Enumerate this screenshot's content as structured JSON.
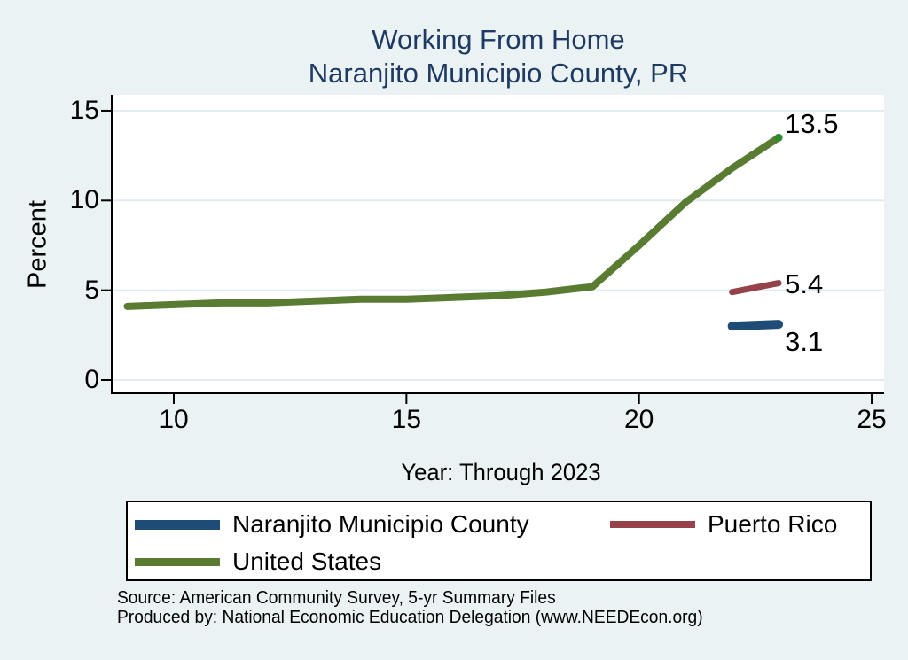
{
  "page": {
    "background_color": "#EAF2F3"
  },
  "chart_data": {
    "type": "line",
    "title_line1": "Working From Home",
    "title_line2": "Naranjito Municipio County, PR",
    "title_color": "#1E3A63",
    "xlabel": "Year: Through 2023",
    "ylabel": "Percent",
    "x_ticks": [
      10,
      15,
      20,
      25
    ],
    "x_tick_labels": [
      "10",
      "15",
      "20",
      "25"
    ],
    "y_ticks": [
      0,
      5,
      10,
      15
    ],
    "y_tick_labels": [
      "0",
      "5",
      "10",
      "15"
    ],
    "xlim": [
      8.7,
      25.3
    ],
    "ylim": [
      -0.7,
      15.9
    ],
    "grid": "horizontal",
    "plot_background": "#FFFFFF",
    "gridline_color": "#E1ECF0",
    "axis_color": "#000000",
    "legend_position": "bottom",
    "series": [
      {
        "name": "Naranjito Municipio County",
        "color": "#1E4C77",
        "line_width": 10,
        "x": [
          22,
          23
        ],
        "values": [
          3.0,
          3.1
        ],
        "end_label": "3.1"
      },
      {
        "name": "Puerto Rico",
        "color": "#96424B",
        "line_width": 7,
        "x": [
          22,
          23
        ],
        "values": [
          4.9,
          5.4
        ],
        "end_label": "5.4"
      },
      {
        "name": "United States",
        "color": "#5A7C32",
        "line_width": 8,
        "x": [
          9,
          10,
          11,
          12,
          13,
          14,
          15,
          16,
          17,
          18,
          19,
          20,
          21,
          22,
          23
        ],
        "values": [
          4.1,
          4.2,
          4.3,
          4.3,
          4.4,
          4.5,
          4.5,
          4.6,
          4.7,
          4.9,
          5.2,
          7.5,
          9.9,
          11.8,
          13.5
        ],
        "end_label": "13.5",
        "end_marker": true,
        "end_marker_color": "#2E8B2E"
      }
    ]
  },
  "footer": {
    "source": "Source: American Community Survey, 5-yr Summary Files",
    "produced_by": "Produced by: National Economic Education Delegation (www.NEEDEcon.org)"
  }
}
